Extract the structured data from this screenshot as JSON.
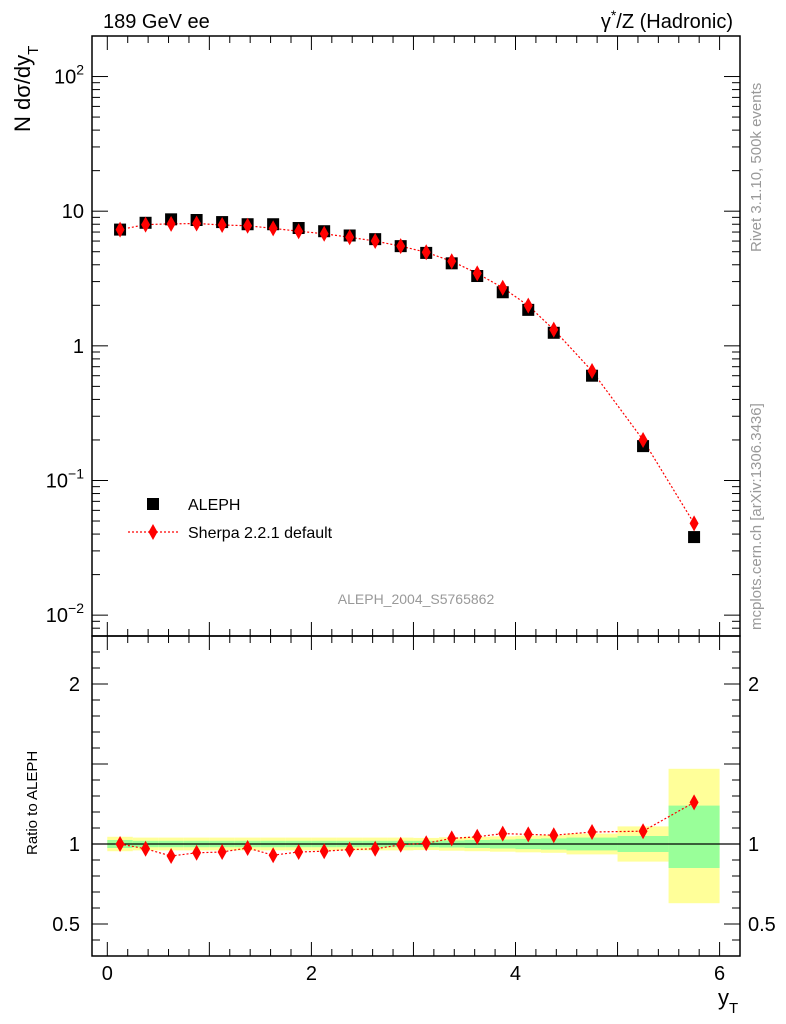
{
  "header": {
    "left_title": "189 GeV ee",
    "right_title_prefix": "γ",
    "right_title_sup": "*",
    "right_title_suffix": "/Z (Hadronic)"
  },
  "side_text": {
    "rivet": "Rivet 3.1.10,  500k events",
    "mcplots": "mcplots.cern.ch [arXiv:1306.3436]"
  },
  "watermark": "ALEPH_2004_S5765862",
  "legend": {
    "data_label": "ALEPH",
    "mc_label": "Sherpa 2.2.1 default",
    "position": "lower-left"
  },
  "colors": {
    "data": "#000000",
    "mc": "#ff0000",
    "band_inner": "#99ff99",
    "band_outer": "#ffff99",
    "side_text": "#999999"
  },
  "chart_data": [
    {
      "type": "scatter",
      "panel": "main",
      "ylabel_main": "N dσ/dy",
      "ylabel_sub": "T",
      "yscale": "log",
      "xlim": [
        -0.15,
        6.2
      ],
      "ylim": [
        0.007,
        200
      ],
      "x_ticks": [
        0,
        2,
        4,
        6
      ],
      "x_tick_labels": [
        "0",
        "2",
        "4",
        "6"
      ],
      "y_ticks": [
        0.01,
        0.1,
        1,
        10,
        100
      ],
      "y_tick_labels": [
        {
          "base": "10",
          "exp": "−2"
        },
        {
          "base": "10",
          "exp": "−1"
        },
        {
          "base": "1",
          "exp": ""
        },
        {
          "base": "10",
          "exp": ""
        },
        {
          "base": "10",
          "exp": "2"
        }
      ],
      "bins": [
        [
          0,
          0.25
        ],
        [
          0.25,
          0.5
        ],
        [
          0.5,
          0.75
        ],
        [
          0.75,
          1.0
        ],
        [
          1.0,
          1.25
        ],
        [
          1.25,
          1.5
        ],
        [
          1.5,
          1.75
        ],
        [
          1.75,
          2.0
        ],
        [
          2.0,
          2.25
        ],
        [
          2.25,
          2.5
        ],
        [
          2.5,
          2.75
        ],
        [
          2.75,
          3.0
        ],
        [
          3.0,
          3.25
        ],
        [
          3.25,
          3.5
        ],
        [
          3.5,
          3.75
        ],
        [
          3.75,
          4.0
        ],
        [
          4.0,
          4.25
        ],
        [
          4.25,
          4.5
        ],
        [
          4.5,
          5.0
        ],
        [
          5.0,
          5.5
        ],
        [
          5.5,
          6.0
        ]
      ],
      "x": [
        0.125,
        0.375,
        0.625,
        0.875,
        1.125,
        1.375,
        1.625,
        1.875,
        2.125,
        2.375,
        2.625,
        2.875,
        3.125,
        3.375,
        3.625,
        3.875,
        4.125,
        4.375,
        4.75,
        5.25,
        5.75
      ],
      "series": [
        {
          "name": "ALEPH",
          "marker": "square",
          "values": [
            7.3,
            8.2,
            8.7,
            8.6,
            8.3,
            8.0,
            8.0,
            7.5,
            7.1,
            6.6,
            6.2,
            5.5,
            4.9,
            4.1,
            3.3,
            2.5,
            1.85,
            1.25,
            0.6,
            0.18,
            0.038
          ]
        },
        {
          "name": "Sherpa 2.2.1 default",
          "marker": "diamond",
          "line": "dotted",
          "values": [
            7.3,
            7.95,
            8.05,
            8.1,
            7.9,
            7.8,
            7.45,
            7.1,
            6.8,
            6.4,
            6.0,
            5.5,
            4.95,
            4.25,
            3.45,
            2.7,
            1.99,
            1.32,
            0.65,
            0.2,
            0.048
          ]
        }
      ]
    },
    {
      "type": "scatter",
      "panel": "ratio",
      "ylabel": "Ratio to ALEPH",
      "xlabel_main": "y",
      "xlabel_sub": "T",
      "xlim": [
        -0.15,
        6.2
      ],
      "ylim": [
        0.3,
        2.3
      ],
      "y_ticks": [
        0.5,
        1,
        2
      ],
      "y_tick_labels": [
        "0.5",
        "1",
        "2"
      ],
      "x": [
        0.125,
        0.375,
        0.625,
        0.875,
        1.125,
        1.375,
        1.625,
        1.875,
        2.125,
        2.375,
        2.625,
        2.875,
        3.125,
        3.375,
        3.625,
        3.875,
        4.125,
        4.375,
        4.75,
        5.25,
        5.75
      ],
      "values": [
        1.0,
        0.97,
        0.925,
        0.945,
        0.95,
        0.975,
        0.93,
        0.95,
        0.955,
        0.965,
        0.97,
        0.995,
        1.005,
        1.035,
        1.045,
        1.065,
        1.06,
        1.055,
        1.075,
        1.08,
        1.26
      ],
      "band_inner": [
        [
          0.975,
          1.025
        ],
        [
          0.98,
          1.02
        ],
        [
          0.98,
          1.02
        ],
        [
          0.98,
          1.02
        ],
        [
          0.98,
          1.02
        ],
        [
          0.98,
          1.02
        ],
        [
          0.98,
          1.02
        ],
        [
          0.98,
          1.02
        ],
        [
          0.98,
          1.02
        ],
        [
          0.98,
          1.02
        ],
        [
          0.98,
          1.02
        ],
        [
          0.98,
          1.02
        ],
        [
          0.98,
          1.02
        ],
        [
          0.978,
          1.022
        ],
        [
          0.975,
          1.025
        ],
        [
          0.972,
          1.028
        ],
        [
          0.968,
          1.032
        ],
        [
          0.965,
          1.035
        ],
        [
          0.96,
          1.04
        ],
        [
          0.95,
          1.05
        ],
        [
          0.85,
          1.24
        ]
      ],
      "band_outer": [
        [
          0.955,
          1.045
        ],
        [
          0.96,
          1.04
        ],
        [
          0.96,
          1.04
        ],
        [
          0.96,
          1.04
        ],
        [
          0.96,
          1.04
        ],
        [
          0.96,
          1.04
        ],
        [
          0.96,
          1.04
        ],
        [
          0.96,
          1.04
        ],
        [
          0.96,
          1.04
        ],
        [
          0.96,
          1.04
        ],
        [
          0.96,
          1.04
        ],
        [
          0.96,
          1.04
        ],
        [
          0.962,
          1.038
        ],
        [
          0.958,
          1.042
        ],
        [
          0.955,
          1.045
        ],
        [
          0.952,
          1.048
        ],
        [
          0.948,
          1.052
        ],
        [
          0.945,
          1.055
        ],
        [
          0.935,
          1.065
        ],
        [
          0.89,
          1.11
        ],
        [
          0.63,
          1.47
        ]
      ]
    }
  ]
}
